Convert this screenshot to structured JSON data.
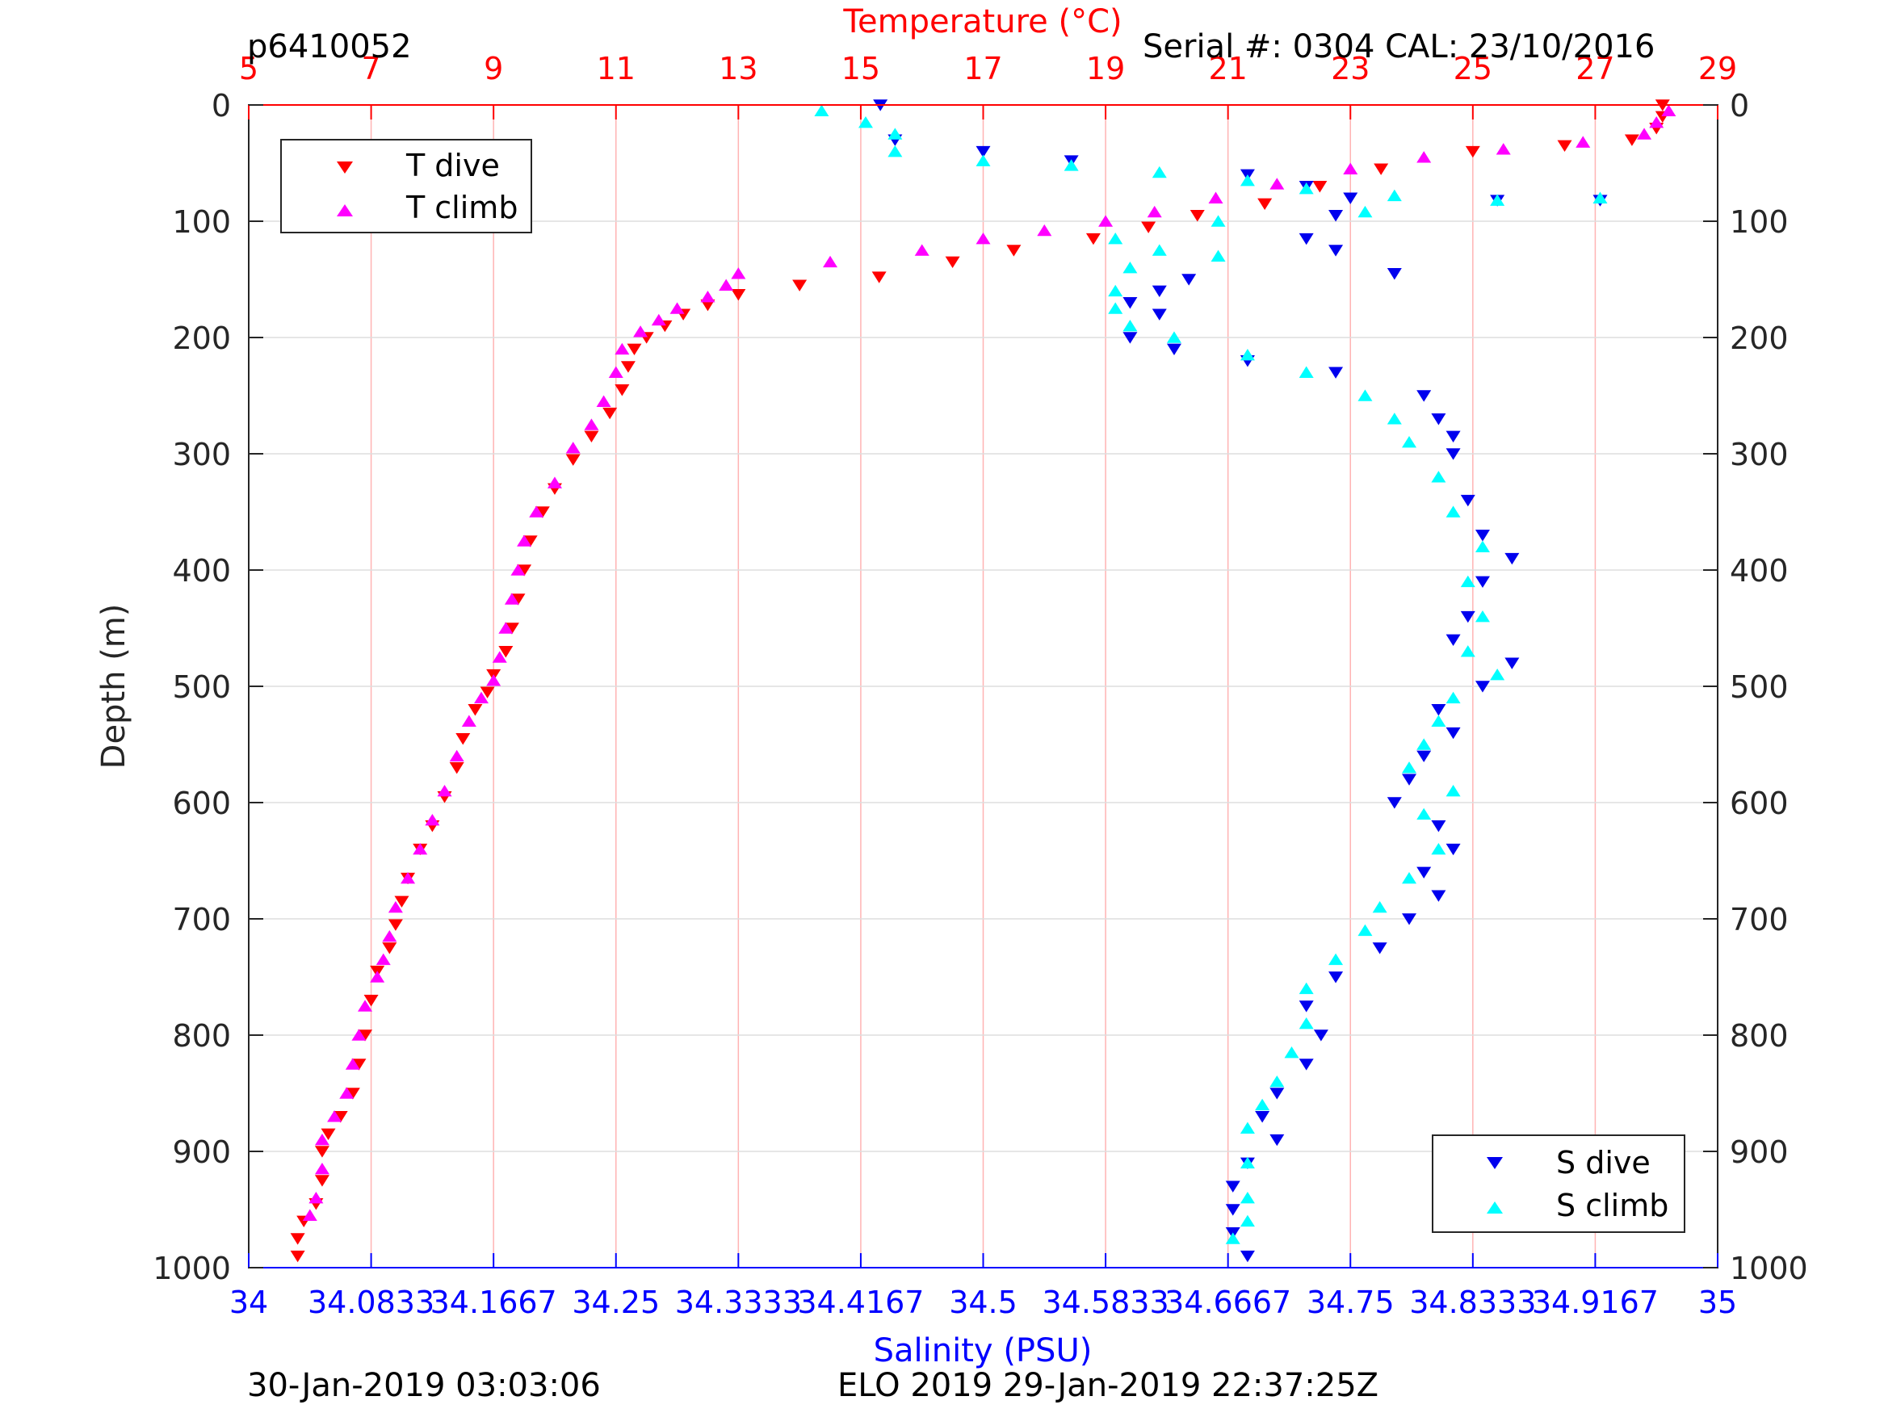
{
  "header": {
    "profile_id": "p6410052",
    "serial_cal": "Serial #: 0304  CAL: 23/10/2016"
  },
  "footer": {
    "left": "30-Jan-2019 03:03:06",
    "center": "ELO 2019 29-Jan-2019 22:37:25Z"
  },
  "colors": {
    "t_dive": "#ff0000",
    "t_climb": "#ff00ff",
    "s_dive": "#0000ee",
    "s_climb": "#00ffff",
    "temp_axis": "#ff0000",
    "sal_axis": "#0000ff"
  },
  "chart_data": {
    "type": "scatter",
    "top_axis_label": "Temperature (°C)",
    "bottom_axis_label": "Salinity (PSU)",
    "ylabel": "Depth (m)",
    "temp_lim": [
      5,
      29
    ],
    "temp_ticks": [
      "5",
      "7",
      "9",
      "11",
      "13",
      "15",
      "17",
      "19",
      "21",
      "23",
      "25",
      "27",
      "29"
    ],
    "sal_lim": [
      34,
      35
    ],
    "sal_ticks": [
      "34",
      "34.0833",
      "34.1667",
      "34.25",
      "34.3333",
      "34.4167",
      "34.5",
      "34.5833",
      "34.6667",
      "34.75",
      "34.8333",
      "34.9167",
      "35"
    ],
    "ylim": [
      0,
      1000
    ],
    "y_reversed": true,
    "y_ticks": [
      "0",
      "100",
      "200",
      "300",
      "400",
      "500",
      "600",
      "700",
      "800",
      "900",
      "1000"
    ],
    "grid": true,
    "legend_temperature": {
      "placement": "top-left",
      "entries": [
        "T dive",
        "T climb"
      ]
    },
    "legend_salinity": {
      "placement": "bottom-right",
      "entries": [
        "S dive",
        "S climb"
      ]
    },
    "series": [
      {
        "name": "T dive",
        "axis": "temperature",
        "marker": "triangle-down",
        "points": [
          [
            28.1,
            0
          ],
          [
            28.1,
            10
          ],
          [
            28.0,
            20
          ],
          [
            27.6,
            30
          ],
          [
            26.5,
            35
          ],
          [
            25.0,
            40
          ],
          [
            23.5,
            55
          ],
          [
            22.5,
            70
          ],
          [
            21.6,
            85
          ],
          [
            20.5,
            95
          ],
          [
            19.7,
            105
          ],
          [
            18.8,
            115
          ],
          [
            17.5,
            125
          ],
          [
            16.5,
            135
          ],
          [
            15.3,
            148
          ],
          [
            14.0,
            155
          ],
          [
            13.0,
            163
          ],
          [
            12.5,
            172
          ],
          [
            12.1,
            180
          ],
          [
            11.8,
            190
          ],
          [
            11.5,
            200
          ],
          [
            11.3,
            210
          ],
          [
            11.2,
            225
          ],
          [
            11.1,
            245
          ],
          [
            10.9,
            265
          ],
          [
            10.6,
            285
          ],
          [
            10.3,
            305
          ],
          [
            10.0,
            330
          ],
          [
            9.8,
            350
          ],
          [
            9.6,
            375
          ],
          [
            9.5,
            400
          ],
          [
            9.4,
            425
          ],
          [
            9.3,
            450
          ],
          [
            9.2,
            470
          ],
          [
            9.0,
            490
          ],
          [
            8.9,
            505
          ],
          [
            8.7,
            520
          ],
          [
            8.5,
            545
          ],
          [
            8.4,
            570
          ],
          [
            8.2,
            595
          ],
          [
            8.0,
            620
          ],
          [
            7.8,
            640
          ],
          [
            7.6,
            665
          ],
          [
            7.5,
            685
          ],
          [
            7.4,
            705
          ],
          [
            7.3,
            725
          ],
          [
            7.1,
            745
          ],
          [
            7.0,
            770
          ],
          [
            6.9,
            800
          ],
          [
            6.8,
            825
          ],
          [
            6.7,
            850
          ],
          [
            6.5,
            870
          ],
          [
            6.3,
            885
          ],
          [
            6.2,
            900
          ],
          [
            6.2,
            925
          ],
          [
            6.1,
            945
          ],
          [
            5.9,
            960
          ],
          [
            5.8,
            975
          ],
          [
            5.8,
            990
          ]
        ]
      },
      {
        "name": "T climb",
        "axis": "temperature",
        "marker": "triangle-up",
        "points": [
          [
            28.2,
            5
          ],
          [
            28.0,
            15
          ],
          [
            27.8,
            25
          ],
          [
            26.8,
            32
          ],
          [
            25.5,
            38
          ],
          [
            24.2,
            45
          ],
          [
            23.0,
            55
          ],
          [
            21.8,
            68
          ],
          [
            20.8,
            80
          ],
          [
            19.8,
            92
          ],
          [
            19.0,
            100
          ],
          [
            18.0,
            108
          ],
          [
            17.0,
            115
          ],
          [
            16.0,
            125
          ],
          [
            14.5,
            135
          ],
          [
            13.0,
            145
          ],
          [
            12.8,
            155
          ],
          [
            12.5,
            165
          ],
          [
            12.0,
            175
          ],
          [
            11.7,
            185
          ],
          [
            11.4,
            195
          ],
          [
            11.1,
            210
          ],
          [
            11.0,
            230
          ],
          [
            10.8,
            255
          ],
          [
            10.6,
            275
          ],
          [
            10.3,
            295
          ],
          [
            10.0,
            325
          ],
          [
            9.7,
            350
          ],
          [
            9.5,
            375
          ],
          [
            9.4,
            400
          ],
          [
            9.3,
            425
          ],
          [
            9.2,
            450
          ],
          [
            9.1,
            475
          ],
          [
            9.0,
            495
          ],
          [
            8.8,
            510
          ],
          [
            8.6,
            530
          ],
          [
            8.4,
            560
          ],
          [
            8.2,
            590
          ],
          [
            8.0,
            615
          ],
          [
            7.8,
            640
          ],
          [
            7.6,
            665
          ],
          [
            7.4,
            690
          ],
          [
            7.3,
            715
          ],
          [
            7.2,
            735
          ],
          [
            7.1,
            750
          ],
          [
            6.9,
            775
          ],
          [
            6.8,
            800
          ],
          [
            6.7,
            825
          ],
          [
            6.6,
            850
          ],
          [
            6.4,
            870
          ],
          [
            6.2,
            890
          ],
          [
            6.2,
            915
          ],
          [
            6.1,
            940
          ],
          [
            6.0,
            955
          ]
        ]
      },
      {
        "name": "S dive",
        "axis": "salinity",
        "marker": "triangle-down",
        "points": [
          [
            34.43,
            0
          ],
          [
            34.44,
            30
          ],
          [
            34.5,
            40
          ],
          [
            34.56,
            48
          ],
          [
            34.68,
            60
          ],
          [
            34.72,
            70
          ],
          [
            34.75,
            80
          ],
          [
            34.85,
            82
          ],
          [
            34.92,
            82
          ],
          [
            34.74,
            95
          ],
          [
            34.72,
            115
          ],
          [
            34.74,
            125
          ],
          [
            34.78,
            145
          ],
          [
            34.64,
            150
          ],
          [
            34.62,
            160
          ],
          [
            34.6,
            170
          ],
          [
            34.62,
            180
          ],
          [
            34.6,
            200
          ],
          [
            34.63,
            210
          ],
          [
            34.68,
            220
          ],
          [
            34.74,
            230
          ],
          [
            34.8,
            250
          ],
          [
            34.81,
            270
          ],
          [
            34.82,
            285
          ],
          [
            34.82,
            300
          ],
          [
            34.83,
            340
          ],
          [
            34.84,
            370
          ],
          [
            34.86,
            390
          ],
          [
            34.84,
            410
          ],
          [
            34.83,
            440
          ],
          [
            34.82,
            460
          ],
          [
            34.86,
            480
          ],
          [
            34.84,
            500
          ],
          [
            34.81,
            520
          ],
          [
            34.82,
            540
          ],
          [
            34.8,
            560
          ],
          [
            34.79,
            580
          ],
          [
            34.78,
            600
          ],
          [
            34.81,
            620
          ],
          [
            34.82,
            640
          ],
          [
            34.8,
            660
          ],
          [
            34.81,
            680
          ],
          [
            34.79,
            700
          ],
          [
            34.77,
            725
          ],
          [
            34.74,
            750
          ],
          [
            34.72,
            775
          ],
          [
            34.73,
            800
          ],
          [
            34.72,
            825
          ],
          [
            34.7,
            850
          ],
          [
            34.69,
            870
          ],
          [
            34.7,
            890
          ],
          [
            34.68,
            910
          ],
          [
            34.67,
            930
          ],
          [
            34.67,
            950
          ],
          [
            34.67,
            970
          ],
          [
            34.68,
            990
          ]
        ]
      },
      {
        "name": "S climb",
        "axis": "salinity",
        "marker": "triangle-up",
        "points": [
          [
            34.39,
            5
          ],
          [
            34.42,
            15
          ],
          [
            34.44,
            25
          ],
          [
            34.44,
            40
          ],
          [
            34.5,
            48
          ],
          [
            34.56,
            52
          ],
          [
            34.62,
            58
          ],
          [
            34.68,
            65
          ],
          [
            34.72,
            72
          ],
          [
            34.78,
            78
          ],
          [
            34.85,
            82
          ],
          [
            34.92,
            80
          ],
          [
            34.76,
            92
          ],
          [
            34.66,
            100
          ],
          [
            34.59,
            115
          ],
          [
            34.62,
            125
          ],
          [
            34.66,
            130
          ],
          [
            34.6,
            140
          ],
          [
            34.59,
            160
          ],
          [
            34.59,
            175
          ],
          [
            34.6,
            190
          ],
          [
            34.63,
            200
          ],
          [
            34.68,
            215
          ],
          [
            34.72,
            230
          ],
          [
            34.76,
            250
          ],
          [
            34.78,
            270
          ],
          [
            34.79,
            290
          ],
          [
            34.81,
            320
          ],
          [
            34.82,
            350
          ],
          [
            34.84,
            380
          ],
          [
            34.83,
            410
          ],
          [
            34.84,
            440
          ],
          [
            34.83,
            470
          ],
          [
            34.85,
            490
          ],
          [
            34.82,
            510
          ],
          [
            34.81,
            530
          ],
          [
            34.8,
            550
          ],
          [
            34.79,
            570
          ],
          [
            34.82,
            590
          ],
          [
            34.8,
            610
          ],
          [
            34.81,
            640
          ],
          [
            34.79,
            665
          ],
          [
            34.77,
            690
          ],
          [
            34.76,
            710
          ],
          [
            34.74,
            735
          ],
          [
            34.72,
            760
          ],
          [
            34.72,
            790
          ],
          [
            34.71,
            815
          ],
          [
            34.7,
            840
          ],
          [
            34.69,
            860
          ],
          [
            34.68,
            880
          ],
          [
            34.68,
            910
          ],
          [
            34.68,
            940
          ],
          [
            34.68,
            960
          ],
          [
            34.67,
            975
          ]
        ]
      }
    ]
  }
}
